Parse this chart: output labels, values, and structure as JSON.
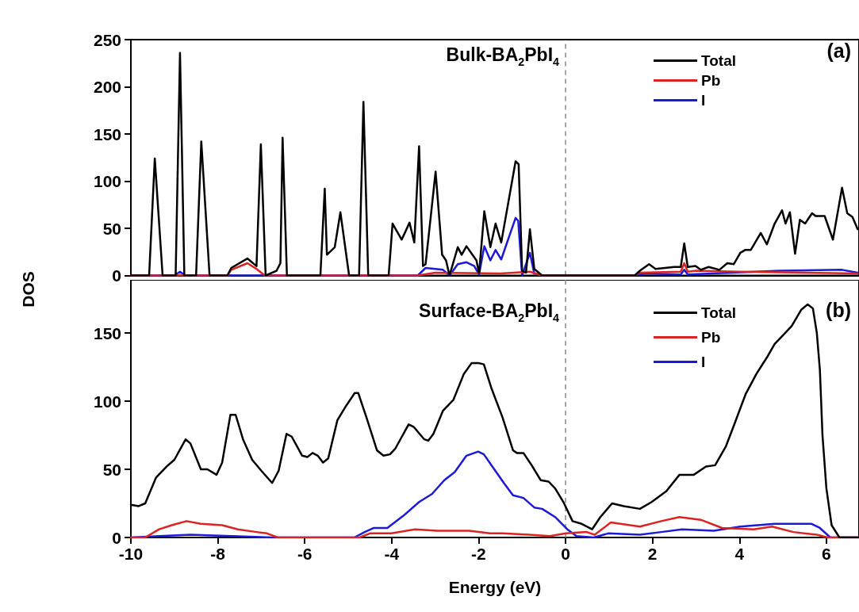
{
  "chart_data": [
    {
      "type": "line",
      "title": "Bulk-BA$_{2}$PbI$_{4}$",
      "ylabel": "DOS",
      "annotations": [
        "(a)"
      ],
      "xlim": [
        -10,
        6.75
      ],
      "xticks": [
        -10,
        -8,
        -6,
        -4,
        -2,
        0,
        2,
        4,
        6
      ],
      "ylim": [
        0,
        250
      ],
      "yticks": [
        0,
        50,
        100,
        150,
        200,
        250
      ],
      "tick_labels": "y",
      "legend": "top right",
      "ref_lines": [
        {
          "axis": "x",
          "value": 0,
          "color": "#888888",
          "line_style": "dashed"
        }
      ],
      "series": [
        {
          "name": "Total",
          "color": "#000000",
          "x": [
            -10,
            -9.58,
            -9.45,
            -9.27,
            -8.97,
            -8.87,
            -8.77,
            -8.5,
            -8.38,
            -8.19,
            -7.78,
            -7.69,
            -7.32,
            -7.11,
            -7.01,
            -6.9,
            -6.65,
            -6.56,
            -6.51,
            -6.41,
            -5.64,
            -5.54,
            -5.49,
            -5.31,
            -5.18,
            -4.98,
            -4.75,
            -4.65,
            -4.54,
            -4.07,
            -3.98,
            -3.77,
            -3.59,
            -3.48,
            -3.37,
            -3.28,
            -3.22,
            -2.99,
            -2.84,
            -2.75,
            -2.67,
            -2.48,
            -2.39,
            -2.28,
            -2.05,
            -1.99,
            -1.87,
            -1.73,
            -1.61,
            -1.48,
            -1.15,
            -1.08,
            -1.0,
            -0.91,
            -0.82,
            -0.72,
            -0.54,
            1.59,
            1.71,
            1.92,
            2.07,
            2.5,
            2.65,
            2.73,
            2.81,
            2.99,
            3.11,
            3.29,
            3.54,
            3.72,
            3.87,
            4.02,
            4.13,
            4.26,
            4.49,
            4.63,
            4.81,
            4.98,
            5.06,
            5.16,
            5.28,
            5.39,
            5.51,
            5.67,
            5.75,
            5.96,
            6.15,
            6.36,
            6.48,
            6.6,
            6.72
          ],
          "values": [
            0,
            0,
            124,
            0,
            0,
            236,
            0,
            0,
            142,
            0,
            0,
            8,
            18,
            10,
            139,
            0,
            5,
            13,
            146,
            0,
            0,
            92,
            22,
            30,
            67,
            0,
            0,
            184,
            0,
            0,
            55,
            38,
            56,
            35,
            137,
            10,
            12,
            110,
            22,
            16,
            0,
            30,
            22,
            31,
            16,
            2,
            68,
            30,
            55,
            35,
            121,
            118,
            5,
            3,
            49,
            7,
            0,
            0,
            5,
            12,
            7,
            9,
            9,
            34,
            9,
            10,
            6,
            9,
            6,
            13,
            12,
            24,
            27,
            27,
            45,
            33,
            55,
            69,
            55,
            67,
            23,
            59,
            55,
            66,
            63,
            63,
            38,
            93,
            66,
            62,
            49
          ]
        },
        {
          "name": "Pb",
          "color": "#dd2222",
          "x": [
            -10,
            -7.78,
            -7.69,
            -7.32,
            -7.11,
            -6.92,
            -3.4,
            -3.0,
            -1.5,
            -0.82,
            -0.54,
            1.59,
            1.71,
            2.65,
            2.73,
            2.81,
            3.0,
            4.0,
            6.72
          ],
          "values": [
            0,
            0,
            6,
            13,
            7,
            0,
            0,
            3,
            2,
            4,
            0,
            0,
            3,
            4,
            13,
            4,
            5,
            4,
            2
          ]
        },
        {
          "name": "I",
          "color": "#1a1ad8",
          "x": [
            -10,
            -9.0,
            -8.87,
            -8.75,
            -3.4,
            -3.22,
            -2.82,
            -2.67,
            -2.48,
            -2.28,
            -2.1,
            -1.99,
            -1.87,
            -1.73,
            -1.61,
            -1.48,
            -1.15,
            -1.09,
            -1.0,
            -0.82,
            -0.72,
            -0.54,
            1.59,
            1.83,
            2.65,
            2.73,
            2.81,
            4.93,
            6.36,
            6.72
          ],
          "values": [
            0,
            0,
            4,
            0,
            0,
            8,
            6,
            0,
            12,
            14,
            10,
            1,
            31,
            16,
            27,
            17,
            61,
            58,
            0,
            24,
            2,
            0,
            0,
            2,
            1,
            6,
            1,
            5,
            6,
            3
          ]
        }
      ]
    },
    {
      "type": "line",
      "title": "Surface-BA$_{2}$PbI$_{4}$",
      "xlabel": "Energy (eV)",
      "annotations": [
        "(b)"
      ],
      "xlim": [
        -10,
        6.75
      ],
      "xticks": [
        -10,
        -8,
        -6,
        -4,
        -2,
        0,
        2,
        4,
        6
      ],
      "ylim": [
        0,
        189
      ],
      "yticks": [
        0,
        50,
        100,
        150
      ],
      "legend": "top right",
      "ref_lines": [
        {
          "axis": "x",
          "value": 0,
          "color": "#888888",
          "line_style": "dashed"
        }
      ],
      "series": [
        {
          "name": "Total",
          "color": "#000000",
          "x": [
            -10,
            -9.82,
            -9.67,
            -9.42,
            -9.18,
            -9.0,
            -8.74,
            -8.63,
            -8.39,
            -8.24,
            -8.03,
            -7.9,
            -7.71,
            -7.59,
            -7.42,
            -7.21,
            -7.0,
            -6.75,
            -6.6,
            -6.42,
            -6.3,
            -6.06,
            -5.94,
            -5.82,
            -5.7,
            -5.58,
            -5.46,
            -5.25,
            -5.06,
            -4.85,
            -4.77,
            -4.58,
            -4.34,
            -4.19,
            -4.04,
            -3.92,
            -3.61,
            -3.49,
            -3.25,
            -3.16,
            -3.04,
            -2.82,
            -2.58,
            -2.34,
            -2.16,
            -2.01,
            -1.88,
            -1.7,
            -1.45,
            -1.21,
            -1.12,
            -0.97,
            -0.78,
            -0.57,
            -0.39,
            -0.24,
            -0.05,
            0.16,
            0.37,
            0.61,
            0.8,
            1.07,
            1.34,
            1.71,
            1.98,
            2.32,
            2.62,
            2.95,
            3.23,
            3.44,
            3.69,
            3.87,
            4.14,
            4.39,
            4.63,
            4.81,
            5.02,
            5.2,
            5.42,
            5.57,
            5.69,
            5.78,
            5.85,
            5.91,
            6.0,
            6.12,
            6.3,
            6.75
          ],
          "values": [
            24,
            23,
            25,
            44,
            52,
            57,
            72,
            69,
            50,
            50,
            46,
            55,
            90,
            90,
            72,
            57,
            49,
            40,
            49,
            76,
            74,
            60,
            59,
            62,
            60,
            55,
            58,
            86,
            96,
            106,
            106,
            88,
            64,
            60,
            61,
            65,
            83,
            81,
            72,
            71,
            76,
            93,
            101,
            120,
            128,
            128,
            127,
            109,
            88,
            64,
            62,
            62,
            53,
            42,
            41,
            36,
            26,
            12,
            10,
            6,
            15,
            25,
            23,
            21,
            26,
            34,
            46,
            46,
            52,
            53,
            67,
            82,
            105,
            120,
            132,
            142,
            149,
            155,
            167,
            171,
            168,
            150,
            123,
            75,
            36,
            9,
            0,
            0
          ]
        },
        {
          "name": "Pb",
          "color": "#dd2222",
          "x": [
            -10,
            -9.67,
            -9.35,
            -9.06,
            -8.72,
            -8.39,
            -7.9,
            -7.54,
            -7.11,
            -6.87,
            -6.62,
            -4.74,
            -4.5,
            -4.01,
            -3.46,
            -2.95,
            -2.22,
            -1.74,
            -1.45,
            -0.84,
            -0.36,
            0.01,
            0.49,
            0.67,
            1.04,
            1.71,
            2.2,
            2.62,
            3.11,
            3.6,
            4.33,
            4.75,
            5.24,
            5.78,
            6.03,
            6.75
          ],
          "values": [
            0,
            0,
            6,
            9,
            12,
            10,
            9,
            6,
            4,
            3,
            0,
            0,
            3,
            3,
            6,
            5,
            5,
            3,
            3,
            2,
            1,
            3,
            4,
            2,
            11,
            8,
            12,
            15,
            13,
            7,
            6,
            8,
            4,
            2,
            0,
            0
          ]
        },
        {
          "name": "I",
          "color": "#1a1ad8",
          "x": [
            -10,
            -9.35,
            -8.63,
            -7.66,
            -6.75,
            -4.86,
            -4.62,
            -4.41,
            -4.1,
            -3.73,
            -3.37,
            -3.07,
            -2.79,
            -2.55,
            -2.28,
            -2.01,
            -1.88,
            -1.64,
            -1.42,
            -1.21,
            -0.97,
            -0.72,
            -0.54,
            -0.24,
            0.04,
            0.25,
            0.65,
            0.98,
            1.71,
            2.2,
            2.68,
            3.41,
            4.02,
            4.81,
            5.66,
            5.85,
            6.09,
            6.75
          ],
          "values": [
            0,
            1,
            2,
            1,
            0,
            0,
            4,
            7,
            7,
            16,
            26,
            32,
            42,
            48,
            60,
            63,
            61,
            50,
            40,
            31,
            29,
            22,
            21,
            15,
            6,
            1,
            0,
            3,
            2,
            4,
            6,
            5,
            8,
            10,
            10,
            7,
            0,
            0
          ]
        }
      ]
    }
  ]
}
